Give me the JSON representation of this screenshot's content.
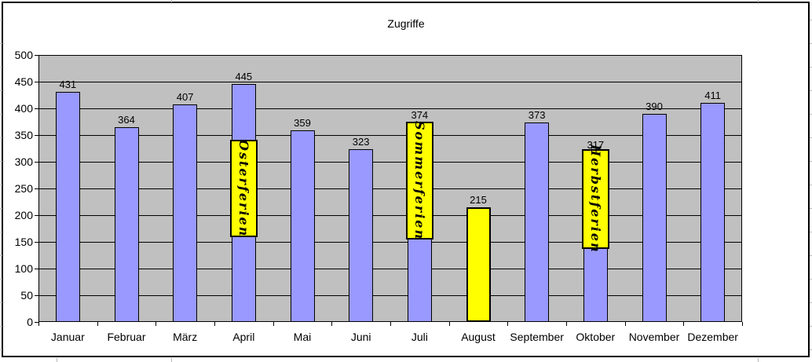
{
  "chart_data": {
    "type": "bar",
    "title": "Zugriffe",
    "categories": [
      "Januar",
      "Februar",
      "März",
      "April",
      "Mai",
      "Juni",
      "Juli",
      "August",
      "September",
      "Oktober",
      "November",
      "Dezember"
    ],
    "values": [
      431,
      364,
      407,
      445,
      359,
      323,
      374,
      215,
      373,
      317,
      390,
      411
    ],
    "xlabel": "",
    "ylabel": "",
    "ylim": [
      0,
      500
    ],
    "yticks": [
      0,
      50,
      100,
      150,
      200,
      250,
      300,
      350,
      400,
      450,
      500
    ],
    "grid": true,
    "legend": false,
    "bar_value_labels": true,
    "highlight": {
      "category": "August",
      "fill": "#FFFF00"
    },
    "annotations": [
      {
        "category": "April",
        "label": "Osterferien",
        "y_top": 341,
        "y_bottom": 159
      },
      {
        "category": "Juli",
        "label": "Sommerferien",
        "y_top": 375,
        "y_bottom": 154
      },
      {
        "category": "Oktober",
        "label": "Herbstferien",
        "y_top": 324,
        "y_bottom": 137
      }
    ],
    "colors": {
      "bar_fill": "#9999FF",
      "bar_border": "#000000",
      "highlight_fill": "#FFFF00",
      "plot_background": "#C0C0C0",
      "gridline": "#000000",
      "annotation_background": "#FFFF00",
      "annotation_border": "#000000",
      "text": "#000000",
      "frame_border": "#000000"
    }
  }
}
